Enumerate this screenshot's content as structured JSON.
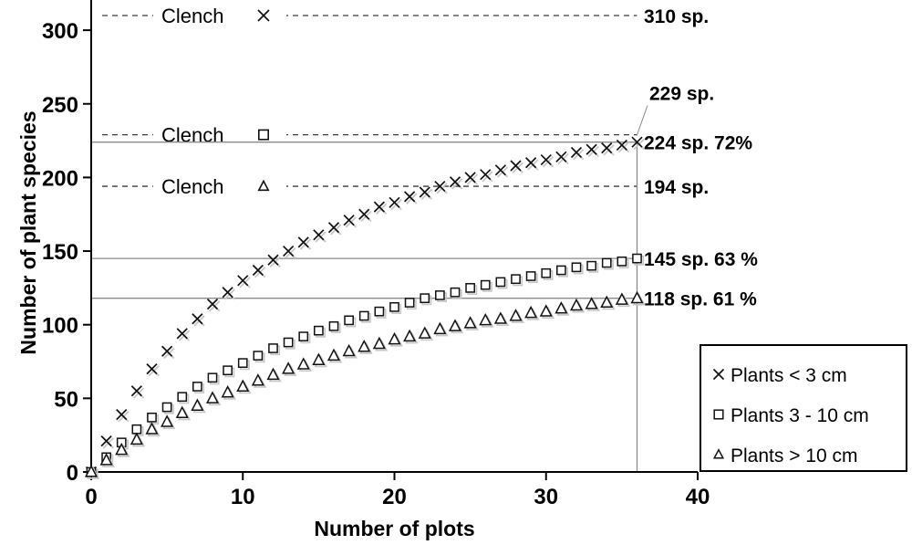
{
  "chart_data": {
    "type": "scatter",
    "title": "",
    "xlabel": "Number of plots",
    "ylabel": "Number of plant species",
    "xlim": [
      0,
      40
    ],
    "ylim": [
      0,
      315
    ],
    "x_ticks": [
      0,
      10,
      20,
      30,
      40
    ],
    "y_ticks": [
      0,
      50,
      100,
      150,
      200,
      250,
      300
    ],
    "grid": false,
    "legend_position": "bottom-right",
    "sampled_plots": 36,
    "x": [
      0,
      1,
      2,
      3,
      4,
      5,
      6,
      7,
      8,
      9,
      10,
      11,
      12,
      13,
      14,
      15,
      16,
      17,
      18,
      19,
      20,
      21,
      22,
      23,
      24,
      25,
      26,
      27,
      28,
      29,
      30,
      31,
      32,
      33,
      34,
      35,
      36
    ],
    "series": [
      {
        "name": "Plants < 3 cm",
        "marker": "cross",
        "values": [
          0,
          21,
          39,
          55,
          70,
          82,
          94,
          104,
          114,
          122,
          130,
          137,
          144,
          150,
          156,
          161,
          166,
          171,
          175,
          180,
          183,
          187,
          190,
          194,
          197,
          200,
          202,
          205,
          208,
          210,
          212,
          214,
          217,
          219,
          220,
          222,
          224
        ],
        "observed": {
          "value": 224,
          "label": "224 sp.  72%"
        },
        "clench": {
          "value": 310,
          "label": "Clench",
          "right_label": "310 sp.",
          "offset_label": false
        }
      },
      {
        "name": "Plants 3 - 10 cm",
        "marker": "square",
        "values": [
          0,
          10,
          20,
          29,
          37,
          44,
          51,
          58,
          64,
          69,
          74,
          79,
          84,
          88,
          92,
          96,
          99,
          103,
          106,
          109,
          112,
          115,
          118,
          120,
          122,
          125,
          127,
          129,
          131,
          133,
          135,
          137,
          139,
          140,
          142,
          143,
          145
        ],
        "observed": {
          "value": 145,
          "label": "145 sp.  63 %"
        },
        "clench": {
          "value": 229,
          "label": "Clench",
          "right_label": "229 sp.",
          "offset_label": true
        }
      },
      {
        "name": "Plants > 10 cm",
        "marker": "triangle",
        "values": [
          0,
          8,
          15,
          22,
          29,
          34,
          40,
          45,
          50,
          54,
          58,
          62,
          66,
          70,
          73,
          76,
          79,
          82,
          85,
          87,
          90,
          92,
          94,
          97,
          99,
          101,
          103,
          104,
          106,
          108,
          109,
          111,
          113,
          114,
          115,
          117,
          118
        ],
        "observed": {
          "value": 118,
          "label": "118 sp.  61 %"
        },
        "clench": {
          "value": 194,
          "label": "Clench",
          "right_label": "194 sp.",
          "offset_label": false
        }
      }
    ],
    "legend_items": [
      "Plants < 3 cm",
      "Plants 3 - 10 cm",
      "Plants > 10 cm"
    ],
    "colors": {
      "marker": "#111111",
      "shadow": "#c6c6c6",
      "guide": "#8a8a8a",
      "dashed": "#3a3a3a",
      "axis": "#000000",
      "background": "#ffffff"
    }
  }
}
